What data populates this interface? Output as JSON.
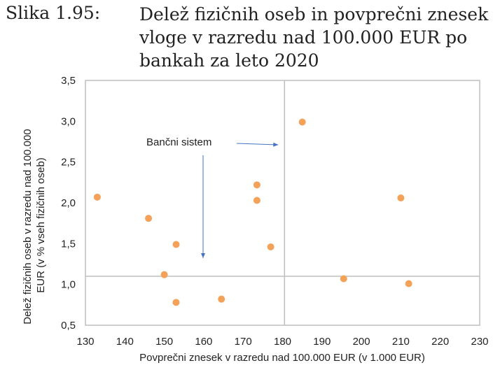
{
  "caption": {
    "label": "Slika 1.95:",
    "title": "Delež fizičnih oseb in povprečni znesek vloge v razredu nad 100.000 EUR po bankah za leto 2020"
  },
  "chart_data": {
    "type": "scatter",
    "title": "",
    "xlabel": "Povprečni znesek v razredu nad 100.000 EUR (v 1.000 EUR)",
    "ylabel_lines": [
      "Delež fizičnih oseb v razredu nad 100.000",
      "EUR (v % vseh fizičnih oseb)"
    ],
    "xlim": [
      130,
      230
    ],
    "ylim": [
      0.5,
      3.5
    ],
    "x_ticks": [
      "130",
      "140",
      "150",
      "160",
      "170",
      "180",
      "190",
      "200",
      "210",
      "220",
      "230"
    ],
    "y_ticks": [
      "0,5",
      "1,0",
      "1,5",
      "2,0",
      "2,5",
      "3,0",
      "3,5"
    ],
    "grid": false,
    "reference_lines": {
      "x": 180.5,
      "y": 1.1
    },
    "annotation": {
      "text": "Bančni sistem"
    },
    "marker_color": "#F4A259",
    "reference_line_color": "#BFBFBF",
    "arrow_color": "#4472C4",
    "points": [
      {
        "x": 133,
        "y": 2.07
      },
      {
        "x": 146,
        "y": 1.81
      },
      {
        "x": 150,
        "y": 1.12
      },
      {
        "x": 153,
        "y": 1.49
      },
      {
        "x": 153,
        "y": 0.78
      },
      {
        "x": 164.5,
        "y": 0.82
      },
      {
        "x": 173.5,
        "y": 2.22
      },
      {
        "x": 173.5,
        "y": 2.03
      },
      {
        "x": 177,
        "y": 1.46
      },
      {
        "x": 185,
        "y": 2.99
      },
      {
        "x": 195.5,
        "y": 1.07
      },
      {
        "x": 210,
        "y": 2.06
      },
      {
        "x": 212,
        "y": 1.01
      }
    ]
  }
}
